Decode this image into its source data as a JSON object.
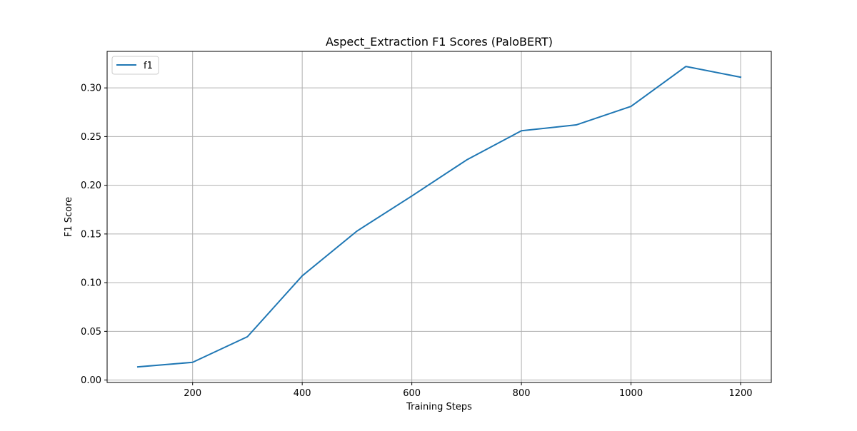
{
  "chart_data": {
    "type": "line",
    "title": "Aspect_Extraction F1 Scores (PaloBERT)",
    "xlabel": "Training Steps",
    "ylabel": "F1 Score",
    "xlim": [
      44,
      1256
    ],
    "ylim": [
      -0.0025,
      0.3375
    ],
    "x_ticks": [
      200,
      400,
      600,
      800,
      1000,
      1200
    ],
    "x_tick_labels": [
      "200",
      "400",
      "600",
      "800",
      "1000",
      "1200"
    ],
    "y_ticks": [
      0.0,
      0.05,
      0.1,
      0.15,
      0.2,
      0.25,
      0.3
    ],
    "y_tick_labels": [
      "0.00",
      "0.05",
      "0.10",
      "0.15",
      "0.20",
      "0.25",
      "0.30"
    ],
    "grid": true,
    "legend_position": "top-left",
    "x": [
      100,
      200,
      300,
      400,
      500,
      600,
      700,
      800,
      900,
      1000,
      1100,
      1200
    ],
    "series": [
      {
        "name": "f1",
        "color": "#1f77b4",
        "values": [
          0.0135,
          0.0182,
          0.0445,
          0.107,
          0.153,
          0.189,
          0.226,
          0.256,
          0.262,
          0.281,
          0.322,
          0.311
        ]
      }
    ]
  }
}
